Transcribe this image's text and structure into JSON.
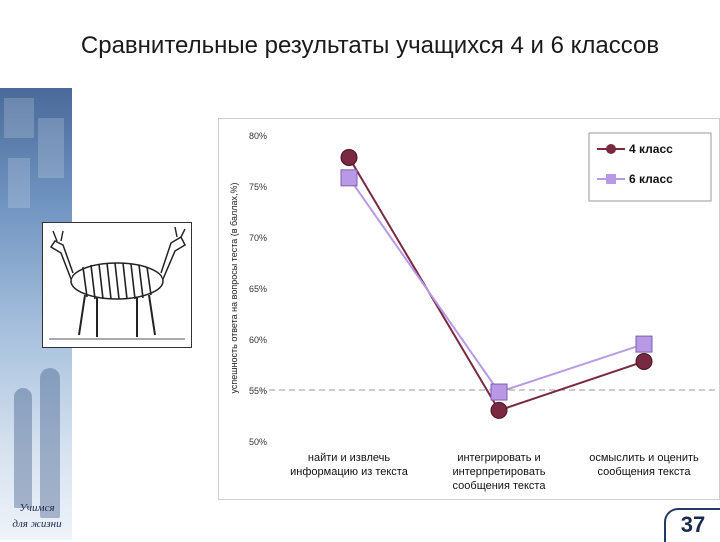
{
  "title": "Сравнительные результаты учащихся 4 и 6 классов",
  "side_caption": [
    "Учимся",
    "для жизни"
  ],
  "page_number": "37",
  "chart_data": {
    "type": "line",
    "ylabel": "успешность ответа на вопросы теста (в баллах,%)",
    "ylim": [
      50,
      80
    ],
    "y_ticks": [
      "80%",
      "75%",
      "70%",
      "65%",
      "60%",
      "55%",
      "50%"
    ],
    "reference_line": 55,
    "categories": [
      [
        "найти и извлечь",
        "информацию из текста"
      ],
      [
        "интегрировать и",
        "интерпретировать",
        "сообщения текста"
      ],
      [
        "осмыслить и оценить",
        "сообщения текста"
      ]
    ],
    "series": [
      {
        "name": "4 класс",
        "values": [
          77.8,
          53.0,
          57.8
        ],
        "color": "#7a2a40",
        "marker": "circle"
      },
      {
        "name": "6 класс",
        "values": [
          75.8,
          54.8,
          59.5
        ],
        "color": "#b999e6",
        "marker": "square"
      }
    ],
    "legend_position": "top-right",
    "grid": false
  }
}
